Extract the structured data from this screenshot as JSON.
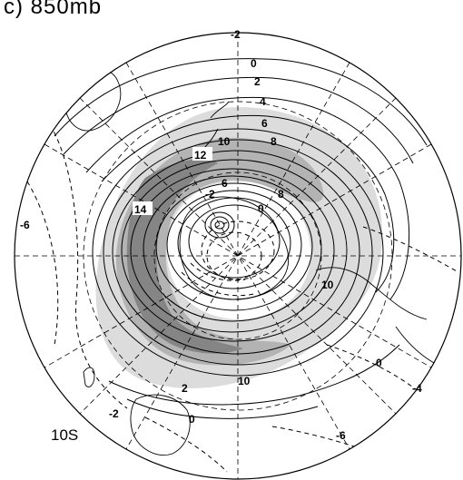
{
  "panel_title": "c) 850mb",
  "latitude_label": "10S",
  "projection": "south-polar-stereographic",
  "colors": {
    "shade_light": "#dcdcdc",
    "shade_mid": "#b3b3b3",
    "shade_dark": "#858585",
    "contour": "#000000",
    "coast": "#000000",
    "grid": "#000000"
  },
  "contour_labels": [
    {
      "id": "c-neg2-top",
      "text": "-2"
    },
    {
      "id": "c-0-top",
      "text": "0"
    },
    {
      "id": "c-2-top",
      "text": "2"
    },
    {
      "id": "c-4-top",
      "text": "4"
    },
    {
      "id": "c-6-top",
      "text": "6"
    },
    {
      "id": "c-8-top",
      "text": "8"
    },
    {
      "id": "c-10-top",
      "text": "10"
    },
    {
      "id": "c-12",
      "text": "12"
    },
    {
      "id": "c-14",
      "text": "14"
    },
    {
      "id": "c-neg6-left",
      "text": "-6"
    },
    {
      "id": "c-neg2-center",
      "text": "-2"
    },
    {
      "id": "c-6-center",
      "text": "6"
    },
    {
      "id": "c-8-center",
      "text": "8"
    },
    {
      "id": "c-0-center",
      "text": "0"
    },
    {
      "id": "c-10-right",
      "text": "10"
    },
    {
      "id": "c-10-bottom",
      "text": "10"
    },
    {
      "id": "c-0-right",
      "text": "0"
    },
    {
      "id": "c-neg4-right",
      "text": "-4"
    },
    {
      "id": "c-2-bottom",
      "text": "2"
    },
    {
      "id": "c-0-bottom",
      "text": "0"
    },
    {
      "id": "c-neg2-bottom",
      "text": "-2"
    },
    {
      "id": "c-neg6-bottom",
      "text": "-6"
    }
  ]
}
